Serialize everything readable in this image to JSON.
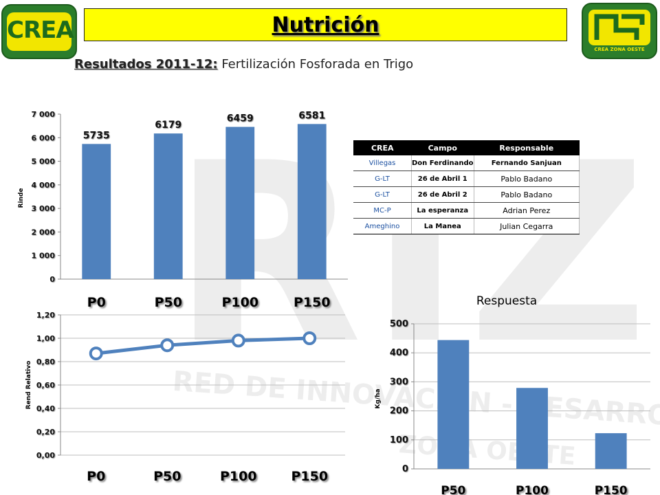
{
  "header": {
    "title": "Nutrición",
    "subtitle_lead": "Resultados 2011-12:",
    "subtitle_rest": "Fertilización Fosforada en Trigo",
    "logo_left": "CREA",
    "logo_right": "CREA ZONA OESTE"
  },
  "watermark": {
    "big": "RIZO",
    "line1": "RED DE INNOVACIÓN - DESARROLLO",
    "line2": "ZONA OESTE"
  },
  "table": {
    "headers": [
      "CREA",
      "Campo",
      "Responsable"
    ],
    "rows": [
      [
        "Villegas",
        "Don Ferdinando",
        "Fernando Sanjuan"
      ],
      [
        "G-LT",
        "26 de Abril 1",
        "Pablo Badano"
      ],
      [
        "G-LT",
        "26 de Abril 2",
        "Pablo Badano"
      ],
      [
        "MC-P",
        "La esperanza",
        "Adrian Perez"
      ],
      [
        "Ameghino",
        "La Manea",
        "Julian Cegarra"
      ]
    ]
  },
  "colors": {
    "bar": "#4f81bd",
    "title_bg": "#ffff00",
    "logo_green": "#2e8b2e",
    "logo_yellow": "#f2e600"
  },
  "chart_data": [
    {
      "id": "rinde",
      "type": "bar",
      "title": "",
      "xlabel": "",
      "ylabel": "Rinde",
      "categories": [
        "P0",
        "P50",
        "P100",
        "P150"
      ],
      "values": [
        5735,
        6179,
        6459,
        6581
      ],
      "data_labels": [
        "5735",
        "6179",
        "6459",
        "6581"
      ],
      "ylim": [
        0,
        7000
      ],
      "yticks": [
        0,
        1000,
        2000,
        3000,
        4000,
        5000,
        6000,
        7000
      ],
      "ytick_labels": [
        "0",
        "1 000",
        "2 000",
        "3 000",
        "4 000",
        "5 000",
        "6 000",
        "7 000"
      ],
      "grid": false
    },
    {
      "id": "rend-relativo",
      "type": "line",
      "title": "",
      "xlabel": "",
      "ylabel": "Rend Relativo",
      "categories": [
        "P0",
        "P50",
        "P100",
        "P150"
      ],
      "values": [
        0.87,
        0.94,
        0.98,
        1.0
      ],
      "ylim": [
        0,
        1.2
      ],
      "yticks": [
        0,
        0.2,
        0.4,
        0.6,
        0.8,
        1.0,
        1.2
      ],
      "ytick_labels": [
        "0,00",
        "0,20",
        "0,40",
        "0,60",
        "0,80",
        "1,00",
        "1,20"
      ],
      "grid": true
    },
    {
      "id": "respuesta",
      "type": "bar",
      "title": "Respuesta",
      "xlabel": "",
      "ylabel": "Kg/ha",
      "categories": [
        "P50",
        "P100",
        "P150"
      ],
      "values": [
        444,
        279,
        123
      ],
      "ylim": [
        0,
        500
      ],
      "yticks": [
        0,
        100,
        200,
        300,
        400,
        500
      ],
      "ytick_labels": [
        "0",
        "100",
        "200",
        "300",
        "400",
        "500"
      ],
      "grid": true
    }
  ]
}
